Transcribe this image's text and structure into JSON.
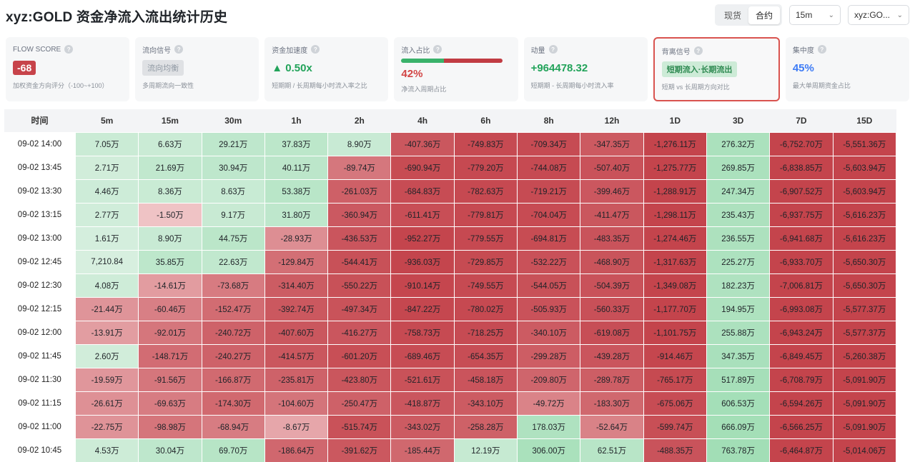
{
  "header": {
    "title": "xyz:GOLD 资金净流入流出统计历史",
    "segment": [
      "现货",
      "合约"
    ],
    "segment_active": 1,
    "interval": "15m",
    "symbol": "xyz:GO..."
  },
  "cards": {
    "flow_score": {
      "label": "FLOW SCORE",
      "value": "-68",
      "sub": "加权资金方向评分（-100~+100）"
    },
    "flow_signal": {
      "label": "流向信号",
      "value": "流向均衡",
      "sub": "多周期流向一致性"
    },
    "accel": {
      "label": "资金加速度",
      "value": "▲ 0.50x",
      "sub": "短期期 / 长周期每小时流入率之比"
    },
    "inflow_ratio": {
      "label": "流入占比",
      "value": "42%",
      "sub": "净流入周期占比",
      "ratio": 0.42
    },
    "momentum": {
      "label": "动量",
      "value": "+964478.32",
      "sub": "短期期 - 长周期每小时流入率"
    },
    "divergence": {
      "label": "背离信号",
      "value": "短期流入·长期流出",
      "sub": "短期 vs 长周期方向对比"
    },
    "concentration": {
      "label": "集中度",
      "value": "45%",
      "sub": "最大单周期资金占比"
    }
  },
  "colors": {
    "positive": "#22a35a",
    "negative": "#c7434a",
    "accent": "#3d7bf5"
  },
  "table": {
    "columns": [
      "时间",
      "5m",
      "15m",
      "30m",
      "1h",
      "2h",
      "4h",
      "6h",
      "8h",
      "12h",
      "1D",
      "3D",
      "7D",
      "15D"
    ],
    "rows": [
      {
        "time": "09-02 14:00",
        "cells": [
          "7.05万",
          "6.63万",
          "29.21万",
          "37.83万",
          "8.90万",
          "-407.36万",
          "-749.83万",
          "-709.34万",
          "-347.35万",
          "-1,276.11万",
          "276.32万",
          "-6,752.70万",
          "-5,551.36万"
        ]
      },
      {
        "time": "09-02 13:45",
        "cells": [
          "2.71万",
          "21.69万",
          "30.94万",
          "40.11万",
          "-89.74万",
          "-690.94万",
          "-779.20万",
          "-744.08万",
          "-507.40万",
          "-1,275.77万",
          "269.85万",
          "-6,838.85万",
          "-5,603.94万"
        ]
      },
      {
        "time": "09-02 13:30",
        "cells": [
          "4.46万",
          "8.36万",
          "8.63万",
          "53.38万",
          "-261.03万",
          "-684.83万",
          "-782.63万",
          "-719.21万",
          "-399.46万",
          "-1,288.91万",
          "247.34万",
          "-6,907.52万",
          "-5,603.94万"
        ]
      },
      {
        "time": "09-02 13:15",
        "cells": [
          "2.77万",
          "-1.50万",
          "9.17万",
          "31.80万",
          "-360.94万",
          "-611.41万",
          "-779.81万",
          "-704.04万",
          "-411.47万",
          "-1,298.11万",
          "235.43万",
          "-6,937.75万",
          "-5,616.23万"
        ]
      },
      {
        "time": "09-02 13:00",
        "cells": [
          "1.61万",
          "8.90万",
          "44.75万",
          "-28.93万",
          "-436.53万",
          "-952.27万",
          "-779.55万",
          "-694.81万",
          "-483.35万",
          "-1,274.46万",
          "236.55万",
          "-6,941.68万",
          "-5,616.23万"
        ]
      },
      {
        "time": "09-02 12:45",
        "cells": [
          "7,210.84",
          "35.85万",
          "22.63万",
          "-129.84万",
          "-544.41万",
          "-936.03万",
          "-729.85万",
          "-532.22万",
          "-468.90万",
          "-1,317.63万",
          "225.27万",
          "-6,933.70万",
          "-5,650.30万"
        ]
      },
      {
        "time": "09-02 12:30",
        "cells": [
          "4.08万",
          "-14.61万",
          "-73.68万",
          "-314.40万",
          "-550.22万",
          "-910.14万",
          "-749.55万",
          "-544.05万",
          "-504.39万",
          "-1,349.08万",
          "182.23万",
          "-7,006.81万",
          "-5,650.30万"
        ]
      },
      {
        "time": "09-02 12:15",
        "cells": [
          "-21.44万",
          "-60.46万",
          "-152.47万",
          "-392.74万",
          "-497.34万",
          "-847.22万",
          "-780.02万",
          "-505.93万",
          "-560.33万",
          "-1,177.70万",
          "194.95万",
          "-6,993.08万",
          "-5,577.37万"
        ]
      },
      {
        "time": "09-02 12:00",
        "cells": [
          "-13.91万",
          "-92.01万",
          "-240.72万",
          "-407.60万",
          "-416.27万",
          "-758.73万",
          "-718.25万",
          "-340.10万",
          "-619.08万",
          "-1,101.75万",
          "255.88万",
          "-6,943.24万",
          "-5,577.37万"
        ]
      },
      {
        "time": "09-02 11:45",
        "cells": [
          "2.60万",
          "-148.71万",
          "-240.27万",
          "-414.57万",
          "-601.20万",
          "-689.46万",
          "-654.35万",
          "-299.28万",
          "-439.28万",
          "-914.46万",
          "347.35万",
          "-6,849.45万",
          "-5,260.38万"
        ]
      },
      {
        "time": "09-02 11:30",
        "cells": [
          "-19.59万",
          "-91.56万",
          "-166.87万",
          "-235.81万",
          "-423.80万",
          "-521.61万",
          "-458.18万",
          "-209.80万",
          "-289.78万",
          "-765.17万",
          "517.89万",
          "-6,708.79万",
          "-5,091.90万"
        ]
      },
      {
        "time": "09-02 11:15",
        "cells": [
          "-26.61万",
          "-69.63万",
          "-174.30万",
          "-104.60万",
          "-250.47万",
          "-418.87万",
          "-343.10万",
          "-49.72万",
          "-183.30万",
          "-675.06万",
          "606.53万",
          "-6,594.26万",
          "-5,091.90万"
        ]
      },
      {
        "time": "09-02 11:00",
        "cells": [
          "-22.75万",
          "-98.98万",
          "-68.94万",
          "-8.67万",
          "-515.74万",
          "-343.02万",
          "-258.28万",
          "178.03万",
          "-52.64万",
          "-599.74万",
          "666.09万",
          "-6,566.25万",
          "-5,091.90万"
        ]
      },
      {
        "time": "09-02 10:45",
        "cells": [
          "4.53万",
          "30.04万",
          "69.70万",
          "-186.64万",
          "-391.62万",
          "-185.44万",
          "12.19万",
          "306.00万",
          "62.51万",
          "-488.35万",
          "763.78万",
          "-6,464.87万",
          "-5,014.06万"
        ]
      }
    ]
  }
}
